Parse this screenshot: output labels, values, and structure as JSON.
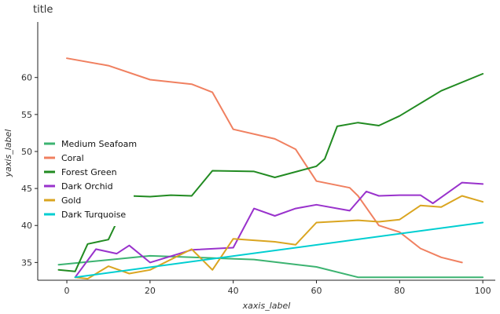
{
  "chart_data": {
    "type": "line",
    "title": "title",
    "xlabel": "xaxis_label",
    "ylabel": "yaxis_label",
    "xlim": [
      -7,
      103
    ],
    "ylim": [
      32.6,
      67.5
    ],
    "x_ticks": [
      0,
      20,
      40,
      60,
      80,
      100
    ],
    "y_ticks": [
      35,
      40,
      45,
      50,
      55,
      60
    ],
    "grid": false,
    "legend_position": "left",
    "series": [
      {
        "name": "Medium Seafoam",
        "color": "#3cb371",
        "points": [
          [
            -2,
            34.7
          ],
          [
            20,
            35.9
          ],
          [
            45,
            35.4
          ],
          [
            60,
            34.4
          ],
          [
            70,
            33.0
          ],
          [
            100,
            33.0
          ]
        ]
      },
      {
        "name": "Coral",
        "color": "#f08060",
        "points": [
          [
            0,
            62.6
          ],
          [
            10,
            61.6
          ],
          [
            20,
            59.7
          ],
          [
            30,
            59.1
          ],
          [
            35,
            58.0
          ],
          [
            40,
            53.0
          ],
          [
            50,
            51.7
          ],
          [
            55,
            50.3
          ],
          [
            60,
            46.0
          ],
          [
            68,
            45.1
          ],
          [
            70,
            44.0
          ],
          [
            75,
            40.0
          ],
          [
            80,
            39.1
          ],
          [
            85,
            36.9
          ],
          [
            90,
            35.7
          ],
          [
            95,
            35.0
          ]
        ]
      },
      {
        "name": "Forest Green",
        "color": "#228b22",
        "points": [
          [
            -2,
            34.0
          ],
          [
            2,
            33.8
          ],
          [
            5,
            37.5
          ],
          [
            10,
            38.1
          ],
          [
            15,
            44.0
          ],
          [
            20,
            43.9
          ],
          [
            25,
            44.1
          ],
          [
            30,
            44.0
          ],
          [
            35,
            47.4
          ],
          [
            45,
            47.3
          ],
          [
            50,
            46.5
          ],
          [
            60,
            48.0
          ],
          [
            62,
            49.0
          ],
          [
            65,
            53.4
          ],
          [
            70,
            53.9
          ],
          [
            75,
            53.5
          ],
          [
            80,
            54.8
          ],
          [
            90,
            58.2
          ],
          [
            100,
            60.5
          ]
        ]
      },
      {
        "name": "Dark Orchid",
        "color": "#9932cc",
        "points": [
          [
            2,
            33.0
          ],
          [
            7,
            36.8
          ],
          [
            12,
            36.2
          ],
          [
            15,
            37.3
          ],
          [
            20,
            35.0
          ],
          [
            30,
            36.7
          ],
          [
            40,
            37.0
          ],
          [
            45,
            42.3
          ],
          [
            50,
            41.3
          ],
          [
            55,
            42.3
          ],
          [
            60,
            42.8
          ],
          [
            68,
            42.0
          ],
          [
            72,
            44.6
          ],
          [
            75,
            44.0
          ],
          [
            80,
            44.1
          ],
          [
            85,
            44.1
          ],
          [
            88,
            43.0
          ],
          [
            95,
            45.8
          ],
          [
            100,
            45.6
          ]
        ]
      },
      {
        "name": "Gold",
        "color": "#daa520",
        "points": [
          [
            2,
            33.0
          ],
          [
            5,
            32.8
          ],
          [
            10,
            34.5
          ],
          [
            15,
            33.5
          ],
          [
            20,
            34.0
          ],
          [
            30,
            36.8
          ],
          [
            35,
            34.0
          ],
          [
            40,
            38.2
          ],
          [
            50,
            37.8
          ],
          [
            55,
            37.4
          ],
          [
            60,
            40.4
          ],
          [
            70,
            40.7
          ],
          [
            75,
            40.5
          ],
          [
            80,
            40.8
          ],
          [
            85,
            42.7
          ],
          [
            90,
            42.5
          ],
          [
            95,
            44.0
          ],
          [
            100,
            43.2
          ]
        ]
      },
      {
        "name": "Dark Turquoise",
        "color": "#00ced1",
        "points": [
          [
            2,
            33.0
          ],
          [
            100,
            40.4
          ]
        ]
      }
    ]
  }
}
